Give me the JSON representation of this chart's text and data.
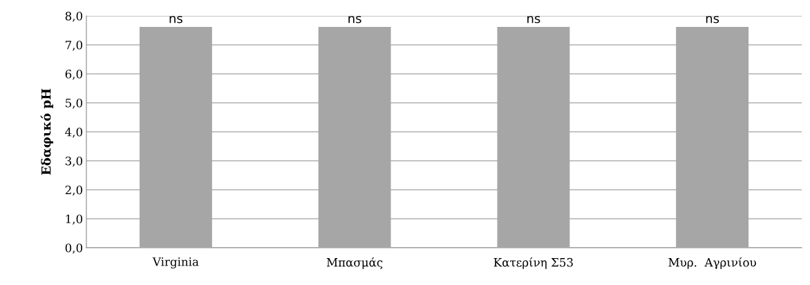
{
  "chart_data": {
    "type": "bar",
    "ylabel": "Εδαφικό pH",
    "categories": [
      "Virginia",
      "Μπασμάς",
      "Κατερίνη Σ53",
      "Μυρ.  Αγρινίου"
    ],
    "values": [
      7.6,
      7.6,
      7.6,
      7.6
    ],
    "color": "#a6a6a6",
    "ylim": [
      0,
      8
    ],
    "yticks": [
      {
        "value": 0,
        "label": "0,0"
      },
      {
        "value": 1,
        "label": "1,0"
      },
      {
        "value": 2,
        "label": "2,0"
      },
      {
        "value": 3,
        "label": "3,0"
      },
      {
        "value": 4,
        "label": "4,0"
      },
      {
        "value": 5,
        "label": "5,0"
      },
      {
        "value": 6,
        "label": "6,0"
      },
      {
        "value": 7,
        "label": "7,0"
      },
      {
        "value": 8,
        "label": "8,0"
      }
    ],
    "grid": "y",
    "annotations": [
      {
        "text": "ns",
        "x": "Virginia",
        "y": 7.6
      },
      {
        "text": "ns",
        "x": "Μπασμάς",
        "y": 7.6
      },
      {
        "text": "ns",
        "x": "Κατερίνη Σ53",
        "y": 7.6
      },
      {
        "text": "ns",
        "x": "Μυρ.  Αγρινίου",
        "y": 7.6
      }
    ]
  }
}
